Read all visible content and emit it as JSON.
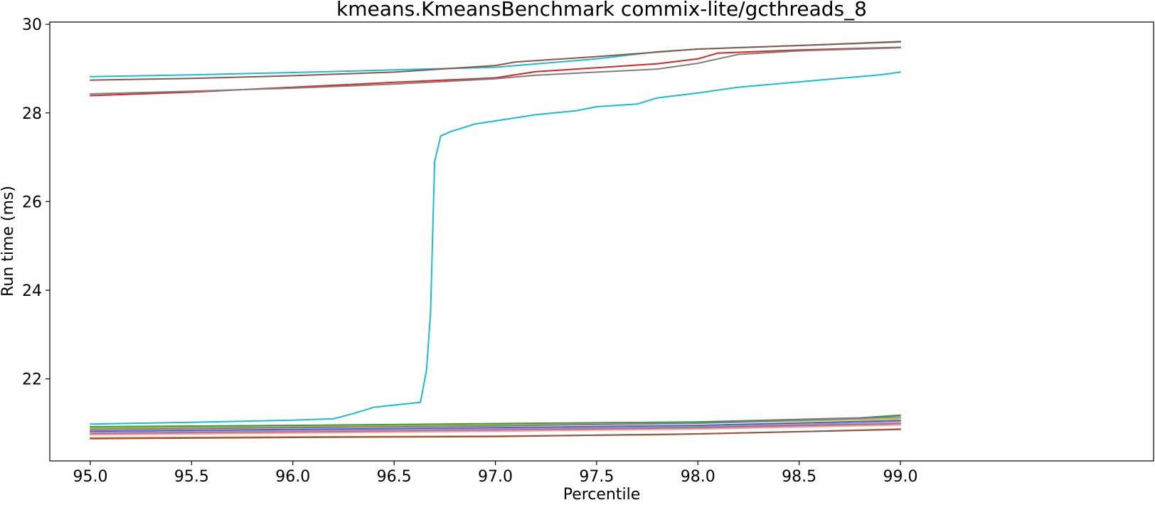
{
  "chart_data": {
    "type": "line",
    "title": "kmeans.KmeansBenchmark commix-lite/gcthreads_8",
    "xlabel": "Percentile",
    "ylabel": "Run time (ms)",
    "xlim": [
      94.8,
      100.25
    ],
    "ylim": [
      20.15,
      30.05
    ],
    "xticks": [
      95.0,
      95.5,
      96.0,
      96.5,
      97.0,
      97.5,
      98.0,
      98.5,
      99.0
    ],
    "xtick_labels": [
      "95.0",
      "95.5",
      "96.0",
      "96.5",
      "97.0",
      "97.5",
      "98.0",
      "98.5",
      "99.0"
    ],
    "yticks": [
      22,
      24,
      26,
      28,
      30
    ],
    "ytick_labels": [
      "22",
      "24",
      "26",
      "28",
      "30"
    ],
    "grid": false,
    "legend": "none",
    "series": [
      {
        "color": "#17becf",
        "x": [
          95.0,
          95.5,
          96.0,
          96.5,
          97.0,
          97.5,
          97.8,
          98.0,
          98.5,
          99.0
        ],
        "y": [
          28.82,
          28.86,
          28.91,
          28.97,
          29.03,
          29.22,
          29.38,
          29.44,
          29.52,
          29.6
        ]
      },
      {
        "color": "#8c564b",
        "x": [
          95.0,
          95.5,
          96.0,
          96.5,
          97.0,
          97.1,
          97.5,
          98.0,
          98.5,
          99.0
        ],
        "y": [
          28.74,
          28.78,
          28.84,
          28.92,
          29.07,
          29.15,
          29.27,
          29.44,
          29.52,
          29.61
        ]
      },
      {
        "color": "#d62728",
        "x": [
          95.0,
          95.5,
          96.0,
          96.5,
          97.0,
          97.2,
          97.5,
          97.8,
          98.0,
          98.1,
          98.5,
          99.0
        ],
        "y": [
          28.39,
          28.47,
          28.58,
          28.69,
          28.79,
          28.93,
          29.02,
          29.11,
          29.22,
          29.35,
          29.42,
          29.48
        ]
      },
      {
        "color": "#7f7f7f",
        "x": [
          95.0,
          95.5,
          96.0,
          96.5,
          97.0,
          97.2,
          97.5,
          97.8,
          98.0,
          98.2,
          98.5,
          99.0
        ],
        "y": [
          28.43,
          28.49,
          28.56,
          28.65,
          28.77,
          28.85,
          28.92,
          28.99,
          29.12,
          29.32,
          29.4,
          29.47
        ]
      },
      {
        "color": "#17becf",
        "x": [
          95.0,
          95.5,
          96.0,
          96.2,
          96.3,
          96.4,
          96.5,
          96.63,
          96.66,
          96.68,
          96.7,
          96.73,
          96.78,
          96.9,
          97.0,
          97.2,
          97.4,
          97.5,
          97.7,
          97.8,
          98.0,
          98.2,
          98.5,
          98.9,
          99.0
        ],
        "y": [
          20.98,
          21.02,
          21.07,
          21.1,
          21.22,
          21.36,
          21.41,
          21.47,
          22.2,
          23.5,
          26.9,
          27.48,
          27.58,
          27.75,
          27.82,
          27.96,
          28.05,
          28.14,
          28.2,
          28.34,
          28.45,
          28.58,
          28.7,
          28.86,
          28.92
        ]
      },
      {
        "color": "#2ca02c",
        "x": [
          95.0,
          96.0,
          97.0,
          98.0,
          98.8,
          99.0
        ],
        "y": [
          20.92,
          20.95,
          20.99,
          21.03,
          21.12,
          21.18
        ]
      },
      {
        "color": "#bcbd22",
        "x": [
          95.0,
          96.0,
          97.0,
          98.0,
          99.0
        ],
        "y": [
          20.89,
          20.92,
          20.96,
          21.0,
          21.1
        ]
      },
      {
        "color": "#9467bd",
        "x": [
          95.0,
          96.0,
          97.0,
          98.0,
          99.0
        ],
        "y": [
          20.86,
          20.9,
          20.94,
          21.0,
          21.14
        ]
      },
      {
        "color": "#1f77b4",
        "x": [
          95.0,
          96.0,
          97.0,
          98.0,
          99.0
        ],
        "y": [
          20.82,
          20.86,
          20.9,
          20.95,
          21.06
        ]
      },
      {
        "color": "#e377c2",
        "x": [
          95.0,
          96.0,
          97.0,
          98.0,
          99.0
        ],
        "y": [
          20.79,
          20.83,
          20.87,
          20.92,
          21.03
        ]
      },
      {
        "color": "#7f7f7f",
        "x": [
          95.0,
          96.0,
          97.0,
          98.0,
          99.0
        ],
        "y": [
          20.76,
          20.8,
          20.84,
          20.9,
          20.99
        ]
      },
      {
        "color": "#ff9896",
        "x": [
          95.0,
          96.0,
          97.0,
          98.0,
          99.0
        ],
        "y": [
          20.74,
          20.78,
          20.82,
          20.87,
          20.96
        ]
      },
      {
        "color": "#ff7f0e",
        "x": [
          95.0,
          96.0,
          97.0,
          97.8,
          98.5,
          99.0
        ],
        "y": [
          20.67,
          20.69,
          20.71,
          20.74,
          20.81,
          20.87
        ]
      },
      {
        "color": "#8c564b",
        "x": [
          95.0,
          96.0,
          97.0,
          98.0,
          98.5,
          99.0
        ],
        "y": [
          20.65,
          20.68,
          20.7,
          20.76,
          20.81,
          20.86
        ]
      }
    ]
  }
}
